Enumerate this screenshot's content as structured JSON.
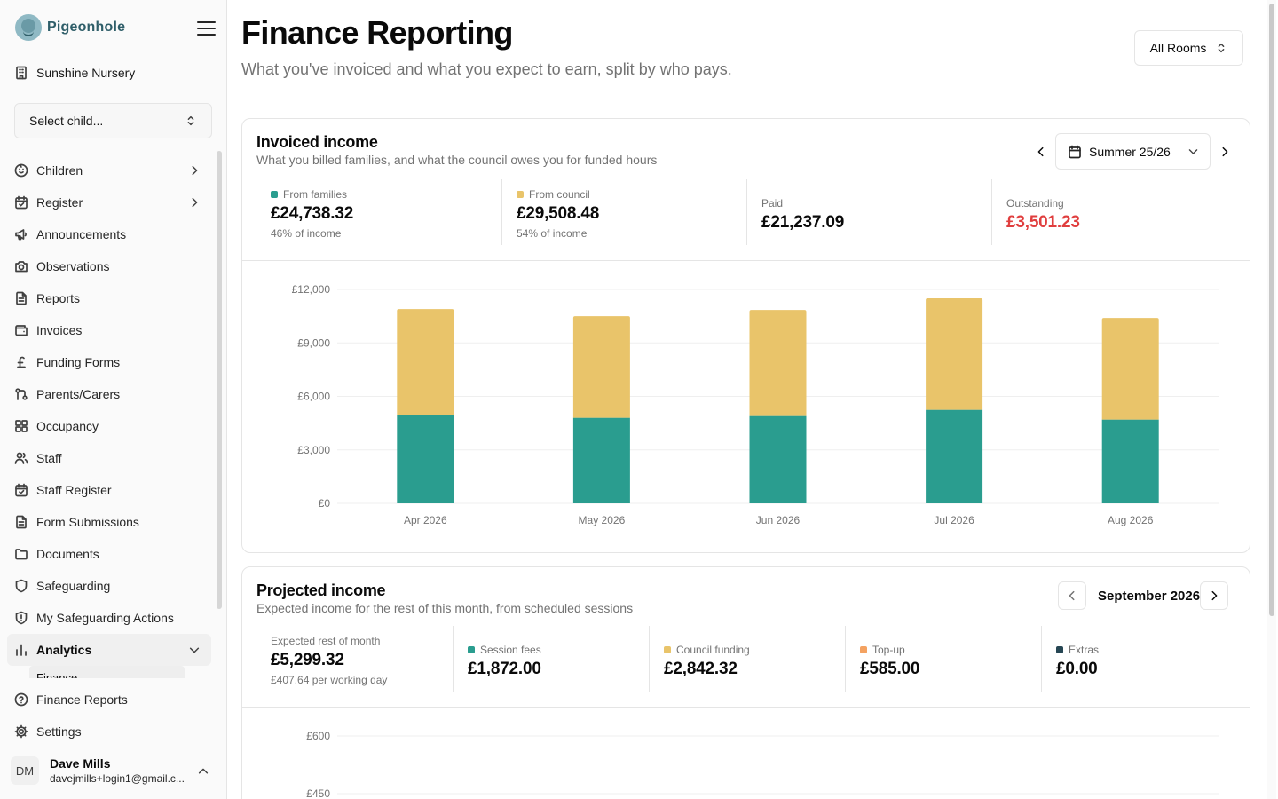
{
  "brand": {
    "name": "Pigeonhole"
  },
  "sidebar": {
    "org_name": "Sunshine Nursery",
    "child_select_placeholder": "Select child...",
    "items": [
      {
        "label": "Children",
        "icon": "baby-icon",
        "chevron": true
      },
      {
        "label": "Register",
        "icon": "calendar-check-icon",
        "chevron": true
      },
      {
        "label": "Announcements",
        "icon": "megaphone-icon"
      },
      {
        "label": "Observations",
        "icon": "camera-icon"
      },
      {
        "label": "Reports",
        "icon": "file-icon"
      },
      {
        "label": "Invoices",
        "icon": "wallet-icon"
      },
      {
        "label": "Funding Forms",
        "icon": "pound-icon"
      },
      {
        "label": "Parents/Carers",
        "icon": "git-pull-icon"
      },
      {
        "label": "Occupancy",
        "icon": "grid-icon"
      },
      {
        "label": "Staff",
        "icon": "users-icon"
      },
      {
        "label": "Staff Register",
        "icon": "calendar-check-icon"
      },
      {
        "label": "Form Submissions",
        "icon": "file-icon"
      },
      {
        "label": "Documents",
        "icon": "folder-icon"
      },
      {
        "label": "Safeguarding",
        "icon": "shield-icon"
      },
      {
        "label": "My Safeguarding Actions",
        "icon": "shield-alert-icon"
      },
      {
        "label": "Analytics",
        "icon": "bar-chart-icon",
        "expanded": true
      }
    ],
    "analytics_sub_item": "Finance",
    "footer_items": [
      {
        "label": "Finance Reports",
        "icon": "help-circle-icon"
      },
      {
        "label": "Settings",
        "icon": "gear-icon"
      }
    ],
    "user": {
      "initials": "DM",
      "name": "Dave Mills",
      "email": "davejmills+login1@gmail.c..."
    }
  },
  "header": {
    "title": "Finance Reporting",
    "subtitle": "What you've invoiced and what you expect to earn, split by who pays.",
    "rooms_filter": "All Rooms"
  },
  "colors": {
    "families": "#2a9d8f",
    "council": "#e9c46a",
    "topup": "#f4a261",
    "extras": "#264653",
    "outstanding": "#e03e3e"
  },
  "invoiced": {
    "title": "Invoiced income",
    "subtitle": "What you billed families, and what the council owes you for funded hours",
    "period": "Summer 25/26",
    "stats": {
      "families_label": "From families",
      "families_value": "£24,738.32",
      "families_note": "46% of income",
      "council_label": "From council",
      "council_value": "£29,508.48",
      "council_note": "54% of income",
      "paid_label": "Paid",
      "paid_value": "£21,237.09",
      "outstanding_label": "Outstanding",
      "outstanding_value": "£3,501.23"
    }
  },
  "projected": {
    "title": "Projected income",
    "subtitle": "Expected income for the rest of this month, from scheduled sessions",
    "month": "September 2026",
    "stats": {
      "expected_label": "Expected rest of month",
      "expected_value": "£5,299.32",
      "expected_note": "£407.64 per working day",
      "session_label": "Session fees",
      "session_value": "£1,872.00",
      "council_label": "Council funding",
      "council_value": "£2,842.32",
      "topup_label": "Top-up",
      "topup_value": "£585.00",
      "extras_label": "Extras",
      "extras_value": "£0.00"
    }
  },
  "chart_data": [
    {
      "type": "bar",
      "stacked": true,
      "title": "",
      "categories": [
        "Apr 2026",
        "May 2026",
        "Jun 2026",
        "Jul 2026",
        "Aug 2026"
      ],
      "series": [
        {
          "name": "From families",
          "color": "#2a9d8f",
          "values": [
            4950,
            4800,
            4900,
            5250,
            4700
          ]
        },
        {
          "name": "From council",
          "color": "#e9c46a",
          "values": [
            5950,
            5700,
            5950,
            6250,
            5700
          ]
        }
      ],
      "ylim": [
        0,
        12000
      ],
      "yticks": [
        0,
        3000,
        6000,
        9000,
        12000
      ],
      "ytick_labels": [
        "£0",
        "£3,000",
        "£6,000",
        "£9,000",
        "£12,000"
      ],
      "grid": true,
      "xlabel": "",
      "ylabel": ""
    },
    {
      "type": "bar",
      "title": "",
      "categories": [],
      "series": [],
      "ylim": [
        450,
        600
      ],
      "ytick_labels_visible": [
        "£600",
        "£450"
      ],
      "grid": true,
      "xlabel": "",
      "ylabel": ""
    }
  ]
}
